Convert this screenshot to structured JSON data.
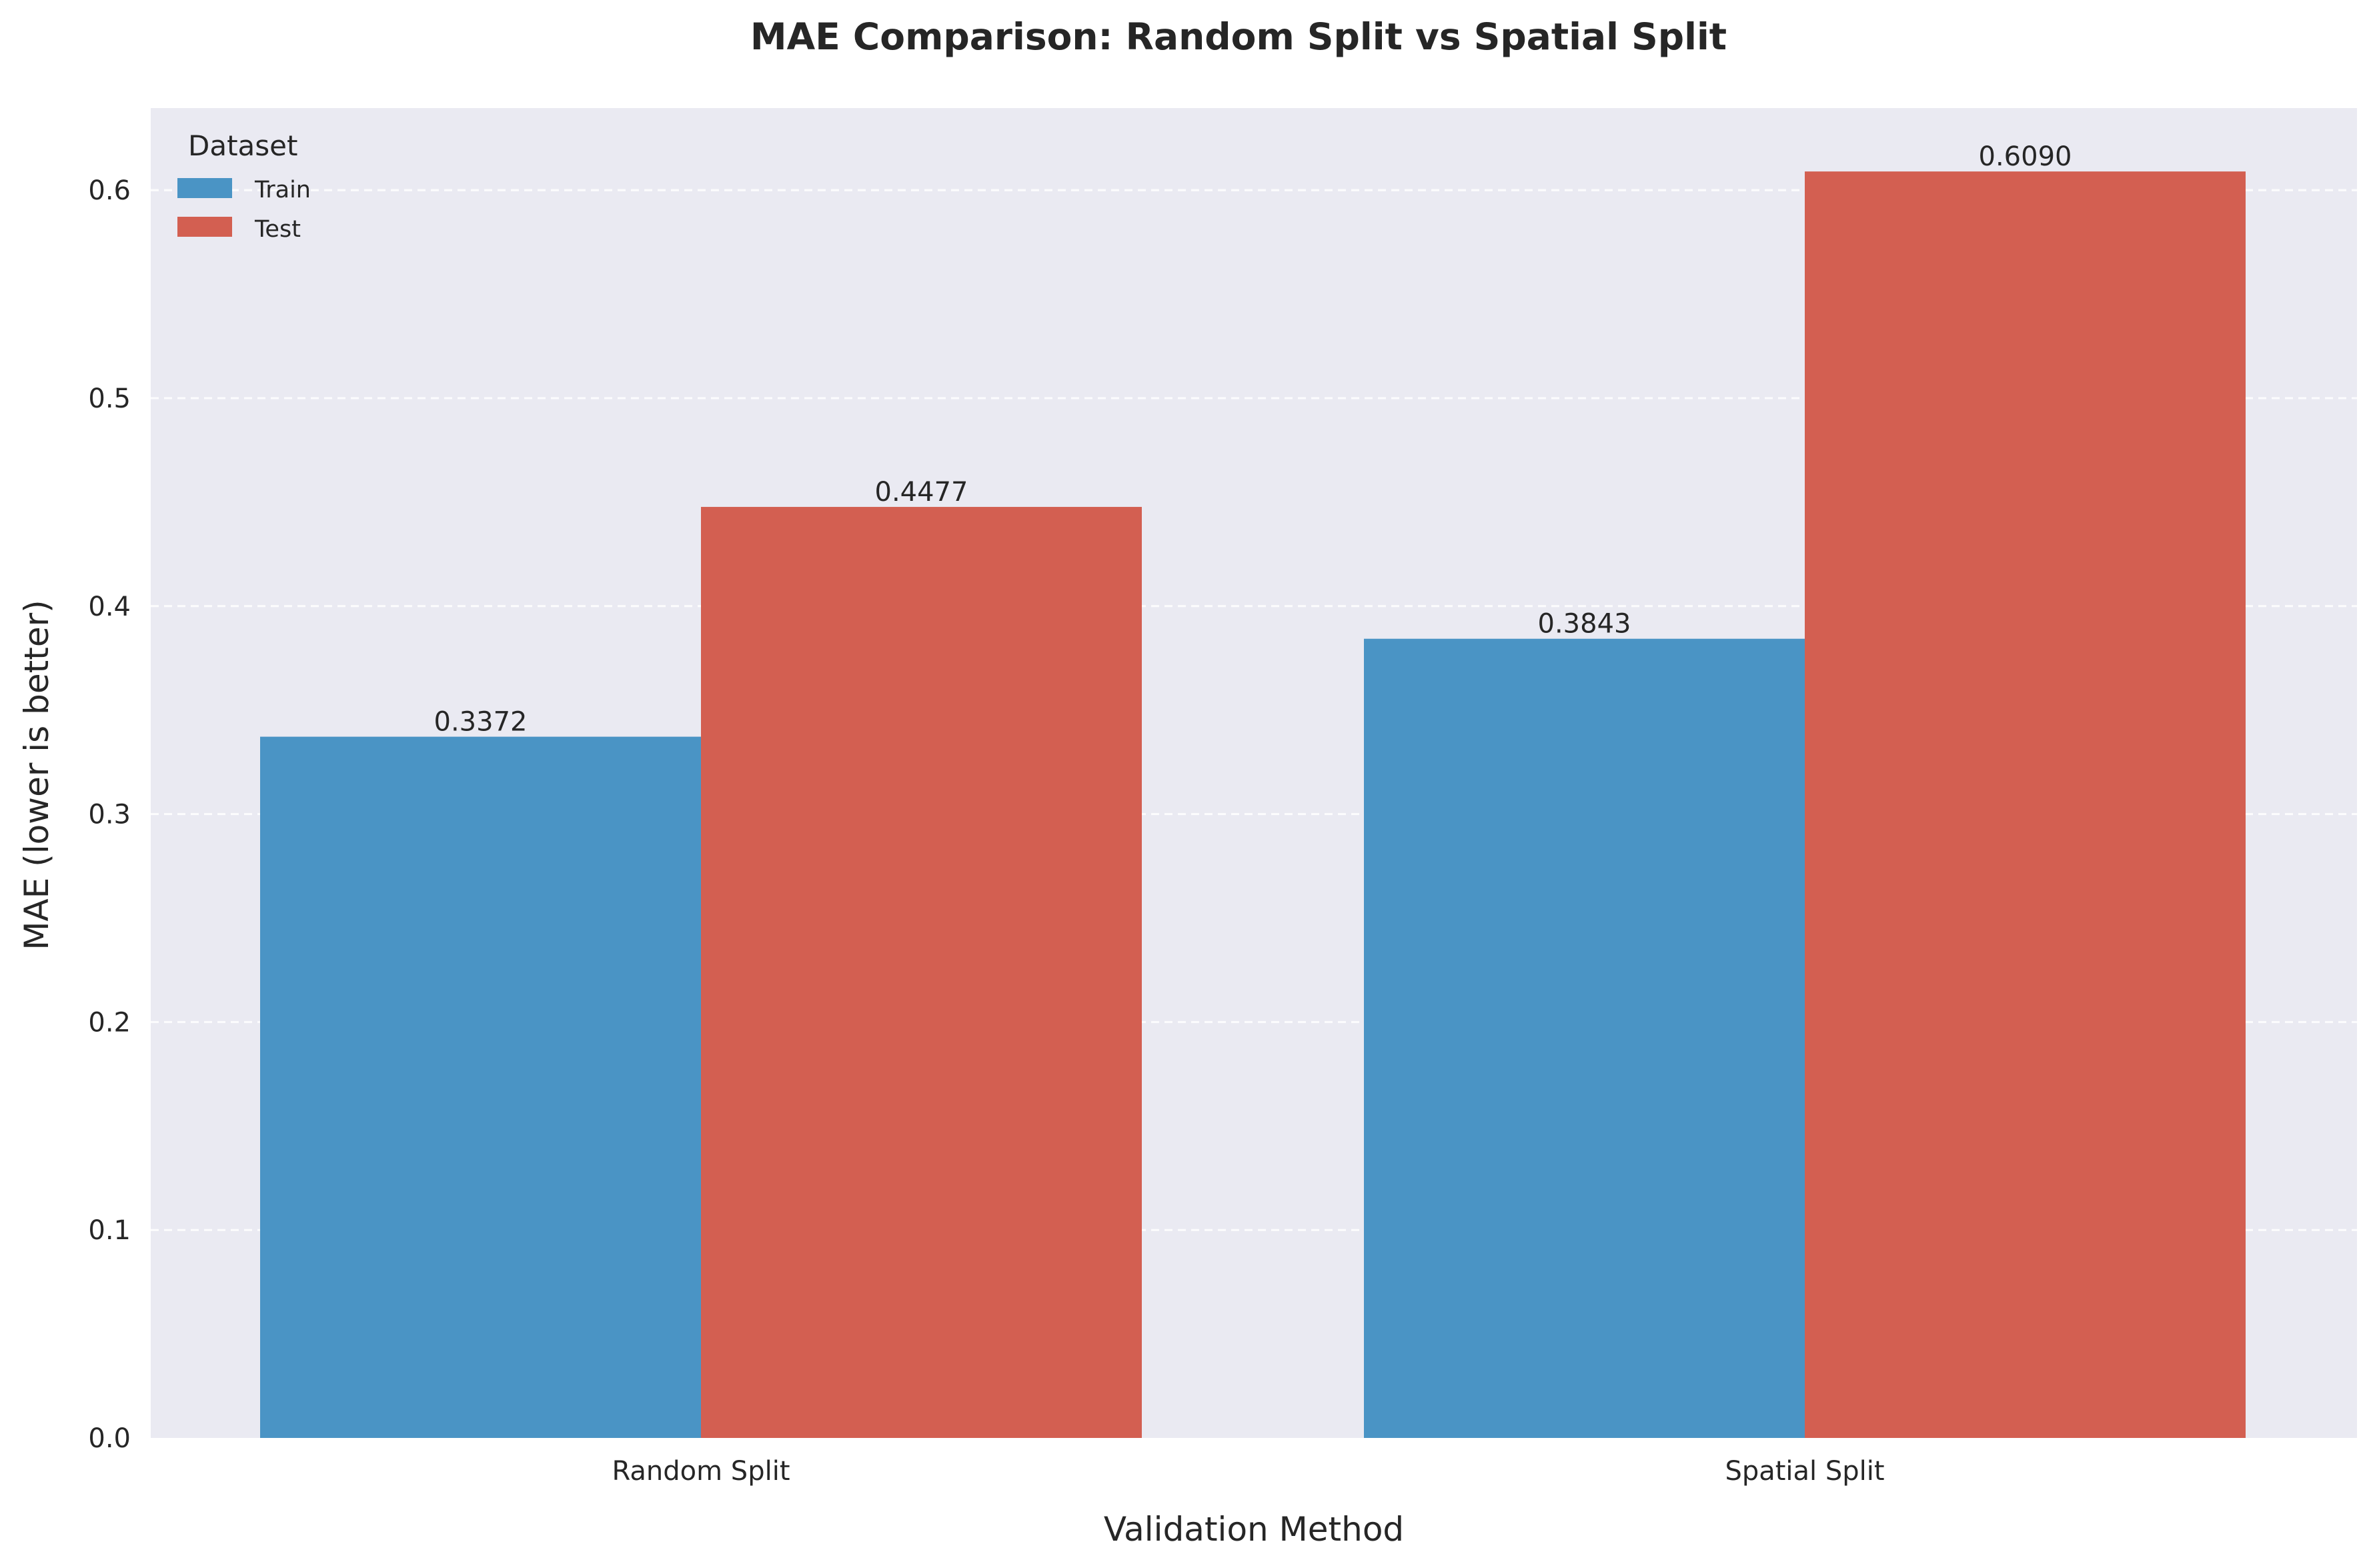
{
  "chart_data": {
    "type": "bar",
    "title": "MAE Comparison: Random Split vs Spatial Split",
    "xlabel": "Validation Method",
    "ylabel": "MAE (lower is better)",
    "categories": [
      "Random Split",
      "Spatial Split"
    ],
    "series": [
      {
        "name": "Train",
        "values": [
          0.3372,
          0.3843
        ],
        "labels": [
          "0.3372",
          "0.3843"
        ],
        "color": "#4a94c5"
      },
      {
        "name": "Test",
        "values": [
          0.4477,
          0.609
        ],
        "labels": [
          "0.4477",
          "0.6090"
        ],
        "color": "#d35f51"
      }
    ],
    "ylim": [
      0,
      0.6395
    ],
    "yticks": [
      0.0,
      0.1,
      0.2,
      0.3,
      0.4,
      0.5,
      0.6
    ],
    "ytick_labels": [
      "0.0",
      "0.1",
      "0.2",
      "0.3",
      "0.4",
      "0.5",
      "0.6"
    ],
    "grid": "y-dashed",
    "legend": {
      "title": "Dataset",
      "placement": "top-left"
    },
    "colors": {
      "plot_background": "#eaeaf2",
      "grid": "#ffffff",
      "text": "#262626"
    }
  }
}
